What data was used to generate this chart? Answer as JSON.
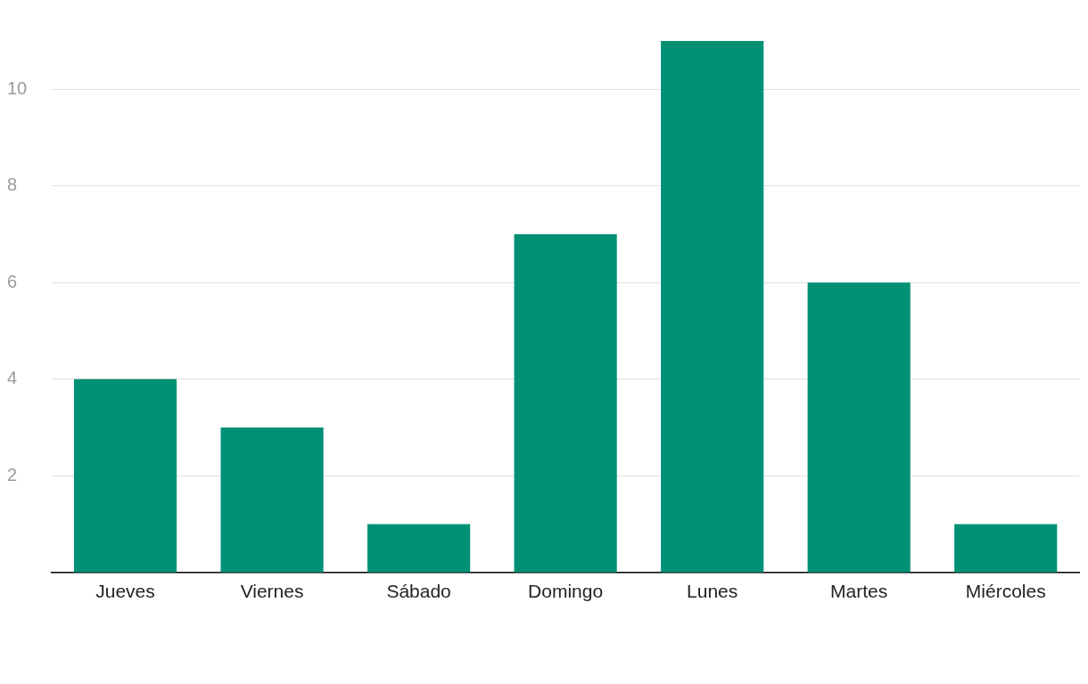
{
  "chart_data": {
    "type": "bar",
    "categories": [
      "Jueves",
      "Viernes",
      "Sábado",
      "Domingo",
      "Lunes",
      "Martes",
      "Miércoles"
    ],
    "values": [
      4,
      3,
      1,
      7,
      11,
      6,
      1
    ],
    "color": "#009175",
    "ylim": [
      0,
      11
    ],
    "yticks": [
      2,
      4,
      6,
      8,
      10
    ],
    "grid": "y"
  }
}
